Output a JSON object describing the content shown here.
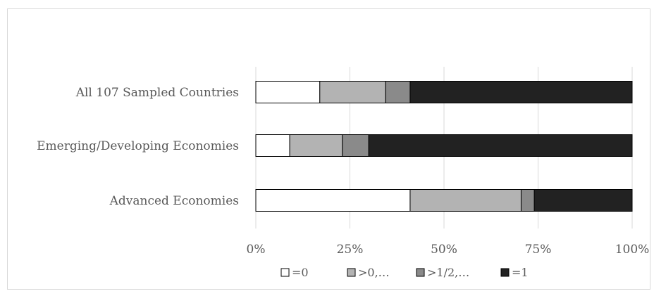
{
  "chart_data": {
    "type": "bar",
    "orientation": "horizontal",
    "stacked": "percent",
    "categories": [
      "All 107 Sampled Countries",
      "Emerging/Developing Economies",
      "Advanced Economies"
    ],
    "series": [
      {
        "name": "=0",
        "color": "#ffffff",
        "values": [
          17,
          9,
          41
        ]
      },
      {
        "name": ">0,…",
        "color": "#b3b3b3",
        "values": [
          17.5,
          14,
          29.5
        ]
      },
      {
        "name": ">1/2,…",
        "color": "#8a8a8a",
        "values": [
          6.5,
          7,
          3.5
        ]
      },
      {
        "name": "=1",
        "color": "#222222",
        "values": [
          59,
          70,
          26
        ]
      }
    ],
    "x_ticks": [
      "0%",
      "25%",
      "50%",
      "75%",
      "100%"
    ],
    "xlim": [
      0,
      100
    ],
    "grid": "vertical",
    "legend_position": "bottom"
  }
}
